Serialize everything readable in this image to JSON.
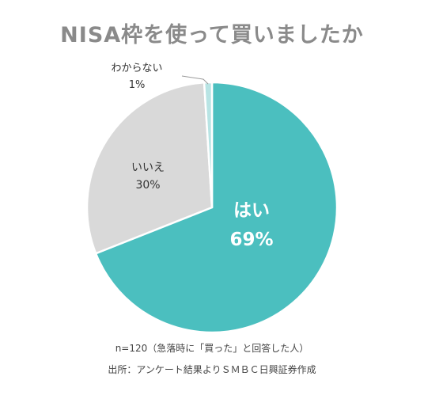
{
  "chart_data": {
    "type": "pie",
    "title": "NISA枠を使って買いましたか",
    "slices": [
      {
        "label": "はい",
        "value": 69,
        "value_label": "69%",
        "color": "#4bbfbf"
      },
      {
        "label": "いいえ",
        "value": 30,
        "value_label": "30%",
        "color": "#d9d9d9"
      },
      {
        "label": "わからない",
        "value": 1,
        "value_label": "1%",
        "color": "#b8e4e4"
      }
    ],
    "legend": "none"
  },
  "notes": {
    "line1": "n=120（急落時に「買った」と回答した人）",
    "line2": "出所：アンケート結果よりＳＭＢＣ日興証券作成"
  }
}
